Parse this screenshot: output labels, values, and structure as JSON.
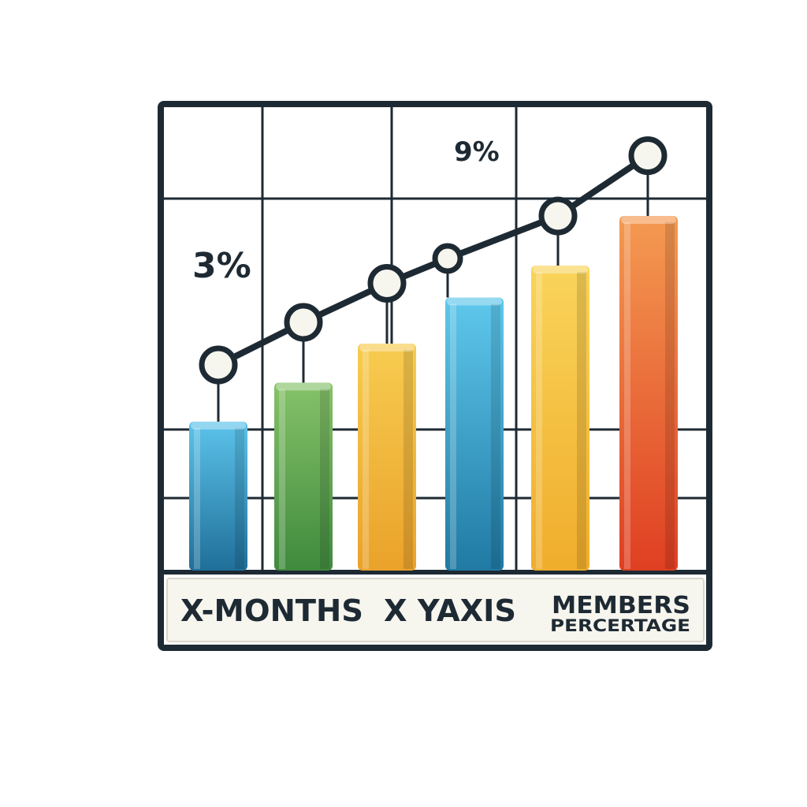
{
  "chart_data": {
    "type": "bar",
    "categories": [
      "",
      "",
      "",
      "",
      "",
      ""
    ],
    "values": [
      42,
      53,
      64,
      77,
      86,
      100
    ],
    "line_values": [
      58,
      70,
      81,
      88,
      100,
      117
    ],
    "ylim": [
      0,
      120
    ],
    "grid": true,
    "labels": [
      {
        "text": "3%",
        "series": "line",
        "index": 0
      },
      {
        "text": "9%",
        "series": "line",
        "index": 3
      }
    ],
    "footer": {
      "left": "X-MONTHS",
      "middle": "X YAXIS",
      "right_top": "MEMBERS",
      "right_bottom": "PERCERTAGE"
    },
    "colors": {
      "bars": [
        "#3aa6d6",
        "#6aa84f",
        "#f2b534",
        "#3ab0de",
        "#f4c234",
        "#ea5a2a"
      ],
      "frame": "#1e2a33",
      "footer_bg": "#f6f5ee",
      "point_fill": "#f7f6ee"
    }
  }
}
